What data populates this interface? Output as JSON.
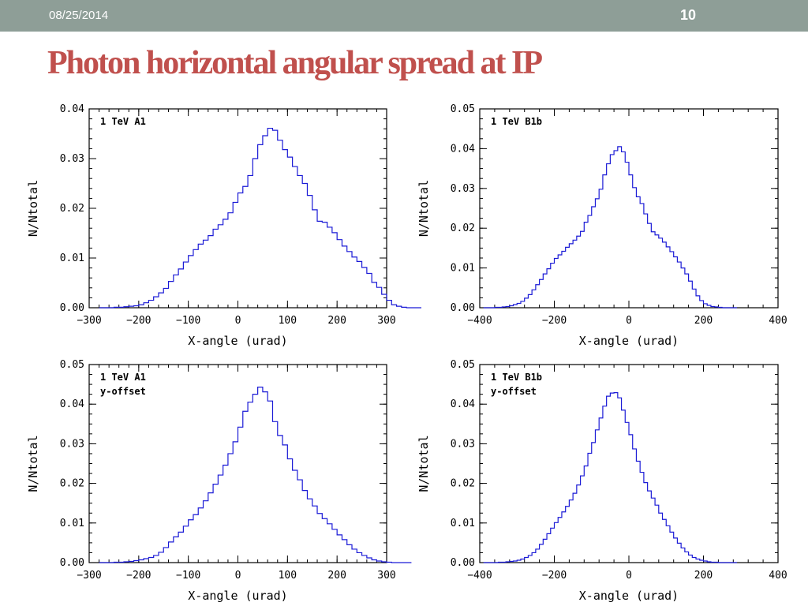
{
  "slide": {
    "date": "08/25/2014",
    "page_number": "10",
    "title": "Photon horizontal angular spread at IP",
    "colors": {
      "header_bar": "#8e9e97",
      "title": "#c0504d",
      "histogram_line": "#1a1ad6"
    }
  },
  "chart_data": [
    {
      "type": "line",
      "step": true,
      "annotation": [
        "1 TeV A1"
      ],
      "xlabel": "X-angle (urad)",
      "ylabel": "N/Ntotal",
      "xlim": [
        -300,
        300
      ],
      "ylim": [
        0,
        0.04
      ],
      "xticks": [
        -300,
        -200,
        -100,
        0,
        100,
        200,
        300
      ],
      "xtick_labels": [
        "−300",
        "−200",
        "−100",
        "0",
        "100",
        "200",
        "300"
      ],
      "yticks": [
        0,
        0.01,
        0.02,
        0.03,
        0.04
      ],
      "ytick_labels": [
        "0.00",
        "0.01",
        "0.02",
        "0.03",
        "0.04"
      ],
      "bin_edges_start": -280,
      "bin_width": 10,
      "values": [
        0.0,
        0.0,
        0.0,
        0.0001,
        0.0001,
        0.0002,
        0.0003,
        0.0004,
        0.0006,
        0.001,
        0.0015,
        0.0022,
        0.003,
        0.0039,
        0.0053,
        0.0066,
        0.0078,
        0.0092,
        0.0105,
        0.0117,
        0.0128,
        0.0136,
        0.0145,
        0.0158,
        0.0167,
        0.0178,
        0.0191,
        0.0212,
        0.0231,
        0.0244,
        0.0266,
        0.03,
        0.0328,
        0.0346,
        0.0361,
        0.0357,
        0.0337,
        0.0318,
        0.0303,
        0.0284,
        0.0266,
        0.025,
        0.0226,
        0.0197,
        0.0174,
        0.0172,
        0.0162,
        0.0151,
        0.0137,
        0.0124,
        0.0113,
        0.0102,
        0.0093,
        0.0081,
        0.0069,
        0.0051,
        0.0041,
        0.0027,
        0.0015,
        0.0006,
        0.0003,
        0.0001,
        0.0,
        0.0,
        0.0
      ]
    },
    {
      "type": "line",
      "step": true,
      "annotation": [
        "1 TeV B1b"
      ],
      "xlabel": "X-angle (urad)",
      "ylabel": "N/Ntotal",
      "xlim": [
        -400,
        400
      ],
      "ylim": [
        0,
        0.05
      ],
      "xticks": [
        -400,
        -200,
        0,
        200,
        400
      ],
      "xtick_labels": [
        "−400",
        "−200",
        "0",
        "200",
        "400"
      ],
      "yticks": [
        0,
        0.01,
        0.02,
        0.03,
        0.04,
        0.05
      ],
      "ytick_labels": [
        "0.00",
        "0.01",
        "0.02",
        "0.03",
        "0.04",
        "0.05"
      ],
      "bin_edges_start": -390,
      "bin_width": 10,
      "values": [
        0.0,
        0.0,
        0.0,
        0.0001,
        0.0001,
        0.0002,
        0.0003,
        0.0005,
        0.0008,
        0.0011,
        0.0016,
        0.0024,
        0.0033,
        0.0045,
        0.0058,
        0.0071,
        0.0085,
        0.0098,
        0.0112,
        0.0124,
        0.0133,
        0.0142,
        0.0152,
        0.0161,
        0.017,
        0.018,
        0.0192,
        0.0215,
        0.0232,
        0.0254,
        0.0274,
        0.0298,
        0.0334,
        0.0362,
        0.0385,
        0.0395,
        0.0405,
        0.0392,
        0.0366,
        0.0334,
        0.0302,
        0.0279,
        0.0262,
        0.0236,
        0.0212,
        0.0191,
        0.0183,
        0.0175,
        0.0165,
        0.0153,
        0.0141,
        0.0128,
        0.0115,
        0.01,
        0.0085,
        0.0067,
        0.0047,
        0.003,
        0.0018,
        0.001,
        0.0006,
        0.0003,
        0.0002,
        0.0001,
        0.0,
        0.0,
        0.0,
        0.0
      ]
    },
    {
      "type": "line",
      "step": true,
      "annotation": [
        "1 TeV A1",
        "y-offset"
      ],
      "xlabel": "X-angle (urad)",
      "ylabel": "N/Ntotal",
      "xlim": [
        -300,
        300
      ],
      "ylim": [
        0,
        0.05
      ],
      "xticks": [
        -300,
        -200,
        -100,
        0,
        100,
        200,
        300
      ],
      "xtick_labels": [
        "−300",
        "−200",
        "−100",
        "0",
        "100",
        "200",
        "300"
      ],
      "yticks": [
        0,
        0.01,
        0.02,
        0.03,
        0.04,
        0.05
      ],
      "ytick_labels": [
        "0.00",
        "0.01",
        "0.02",
        "0.03",
        "0.04",
        "0.05"
      ],
      "bin_edges_start": -280,
      "bin_width": 10,
      "values": [
        0.0,
        0.0,
        0.0,
        0.0001,
        0.0001,
        0.0002,
        0.0003,
        0.0005,
        0.0007,
        0.001,
        0.0013,
        0.0018,
        0.0026,
        0.0038,
        0.0052,
        0.0065,
        0.0077,
        0.0092,
        0.0108,
        0.0121,
        0.0138,
        0.0156,
        0.0176,
        0.0198,
        0.0221,
        0.0246,
        0.0275,
        0.0305,
        0.0342,
        0.0382,
        0.0405,
        0.0425,
        0.0443,
        0.0431,
        0.0408,
        0.0356,
        0.0321,
        0.0297,
        0.0262,
        0.0233,
        0.0209,
        0.0182,
        0.0161,
        0.0143,
        0.0124,
        0.0111,
        0.0098,
        0.0084,
        0.007,
        0.0058,
        0.0045,
        0.0034,
        0.0025,
        0.0018,
        0.0012,
        0.0007,
        0.0004,
        0.0002,
        0.0001,
        0.0,
        0.0,
        0.0,
        0.0
      ]
    },
    {
      "type": "line",
      "step": true,
      "annotation": [
        "1 TeV B1b",
        "y-offset"
      ],
      "xlabel": "X-angle (urad)",
      "ylabel": "N/Ntotal",
      "xlim": [
        -400,
        400
      ],
      "ylim": [
        0,
        0.05
      ],
      "xticks": [
        -400,
        -200,
        0,
        200,
        400
      ],
      "xtick_labels": [
        "−400",
        "−200",
        "0",
        "200",
        "400"
      ],
      "yticks": [
        0,
        0.01,
        0.02,
        0.03,
        0.04,
        0.05
      ],
      "ytick_labels": [
        "0.00",
        "0.01",
        "0.02",
        "0.03",
        "0.04",
        "0.05"
      ],
      "bin_edges_start": -390,
      "bin_width": 10,
      "values": [
        0.0,
        0.0,
        0.0,
        0.0,
        0.0001,
        0.0001,
        0.0002,
        0.0003,
        0.0004,
        0.0006,
        0.0009,
        0.0013,
        0.0018,
        0.0025,
        0.0034,
        0.0046,
        0.0059,
        0.0073,
        0.0087,
        0.0101,
        0.0114,
        0.0128,
        0.0142,
        0.0158,
        0.0175,
        0.0196,
        0.0219,
        0.0244,
        0.0276,
        0.0303,
        0.0335,
        0.0365,
        0.0395,
        0.042,
        0.0428,
        0.0429,
        0.0416,
        0.0385,
        0.0354,
        0.0323,
        0.0287,
        0.0256,
        0.0228,
        0.0202,
        0.0181,
        0.0163,
        0.0145,
        0.0125,
        0.0109,
        0.0093,
        0.0077,
        0.0062,
        0.0049,
        0.0037,
        0.0027,
        0.0019,
        0.0013,
        0.0009,
        0.0006,
        0.0004,
        0.0002,
        0.0001,
        0.0001,
        0.0,
        0.0,
        0.0,
        0.0,
        0.0
      ]
    }
  ]
}
